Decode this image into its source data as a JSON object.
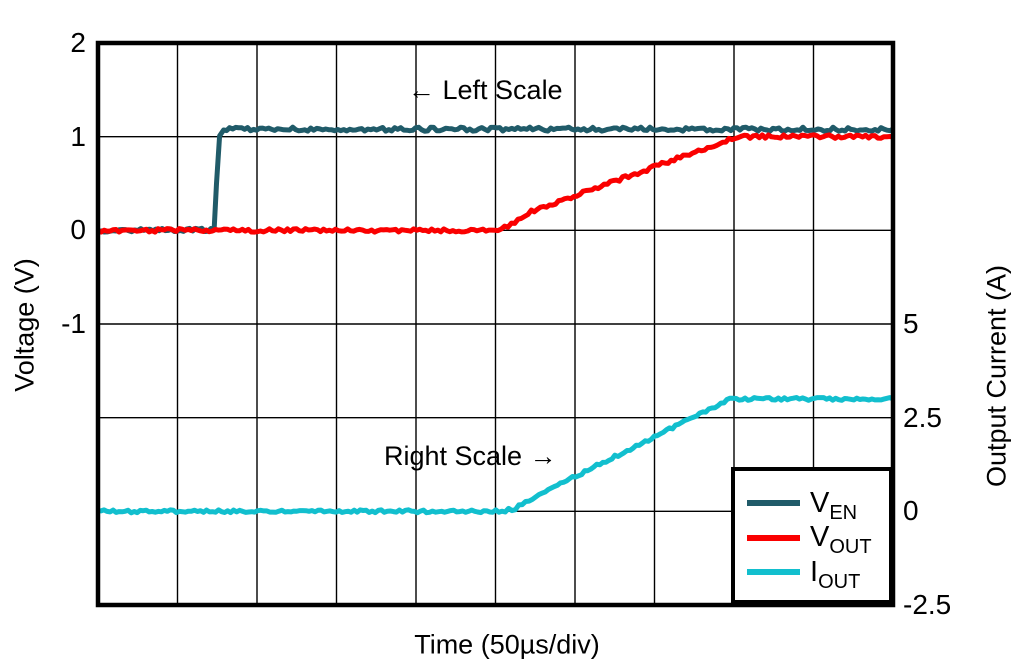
{
  "chart_data": {
    "type": "line",
    "title": "",
    "xlabel": "Time (50µs/div)",
    "grid": true,
    "x_axis": {
      "divisions": 10,
      "per_division": "50µs",
      "total_span": "500µs"
    },
    "left_axis": {
      "label": "Voltage (V)",
      "unit": "V",
      "units_per_div": 1,
      "zero_row": 2,
      "ylim": [
        -4,
        2
      ],
      "ticks": [
        {
          "row": 0,
          "label": "2"
        },
        {
          "row": 1,
          "label": "1"
        },
        {
          "row": 2,
          "label": "0"
        },
        {
          "row": 3,
          "label": "-1"
        }
      ]
    },
    "right_axis": {
      "label": "Output Current (A)",
      "unit": "A",
      "units_per_div": 2.5,
      "zero_row": 5,
      "ylim": [
        -2.5,
        12.5
      ],
      "ticks": [
        {
          "row": 3,
          "label": "5"
        },
        {
          "row": 4,
          "label": "2.5"
        },
        {
          "row": 5,
          "label": "0"
        },
        {
          "row": 6,
          "label": "-2.5"
        }
      ]
    },
    "annotations": [
      {
        "text": "← Left Scale"
      },
      {
        "text": "Right Scale →"
      }
    ],
    "legend": {
      "position": "bottom-right"
    },
    "series": [
      {
        "name": "V_EN",
        "legend_main": "V",
        "legend_sub": "EN",
        "axis": "left",
        "color": "#205b69",
        "noise": 2.0,
        "points_div_units": [
          [
            0,
            0
          ],
          [
            1.46,
            0
          ],
          [
            1.49,
            0.5
          ],
          [
            1.53,
            1.02
          ],
          [
            1.58,
            1.08
          ],
          [
            10,
            1.08
          ]
        ]
      },
      {
        "name": "V_OUT",
        "legend_main": "V",
        "legend_sub": "OUT",
        "axis": "left",
        "color": "#fa0000",
        "noise": 1.8,
        "points_div_units": [
          [
            0,
            0
          ],
          [
            5.03,
            0
          ],
          [
            5.2,
            0.06
          ],
          [
            5.45,
            0.2
          ],
          [
            8.05,
            1.0
          ],
          [
            10,
            1.0
          ]
        ]
      },
      {
        "name": "I_OUT",
        "legend_main": "I",
        "legend_sub": "OUT",
        "axis": "right",
        "color": "#12bfce",
        "noise": 1.5,
        "points_div_units": [
          [
            0,
            0
          ],
          [
            5.08,
            0
          ],
          [
            5.25,
            0.08
          ],
          [
            5.55,
            0.45
          ],
          [
            7.95,
            3.0
          ],
          [
            10,
            3.0
          ]
        ]
      }
    ]
  }
}
